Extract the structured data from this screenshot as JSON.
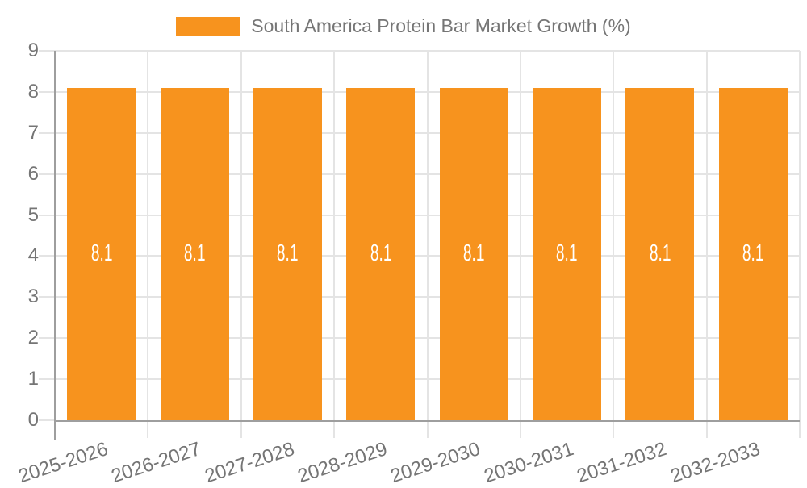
{
  "chart_data": {
    "type": "bar",
    "title": "South America Protein Bar Market Growth (%)",
    "categories": [
      "2025-2026",
      "2026-2027",
      "2027-2028",
      "2028-2029",
      "2029-2030",
      "2030-2031",
      "2031-2032",
      "2032-2033"
    ],
    "values": [
      8.1,
      8.1,
      8.1,
      8.1,
      8.1,
      8.1,
      8.1,
      8.1
    ],
    "value_labels": [
      "8.1",
      "8.1",
      "8.1",
      "8.1",
      "8.1",
      "8.1",
      "8.1",
      "8.1"
    ],
    "xlabel": "",
    "ylabel": "",
    "ylim": [
      0,
      9
    ],
    "yticks": [
      0,
      1,
      2,
      3,
      4,
      5,
      6,
      7,
      8,
      9
    ],
    "grid": true,
    "legend_position": "top-center",
    "x_tick_rotation_deg": -18
  },
  "legend": {
    "label": "South America Protein Bar Market Growth (%)"
  },
  "colors": {
    "bar": "#f7931e",
    "bar_label": "#ffffff",
    "axis_line": "#9e9e9e",
    "gridline": "#e4e4e4",
    "tick_text": "#757575",
    "background": "#ffffff"
  }
}
